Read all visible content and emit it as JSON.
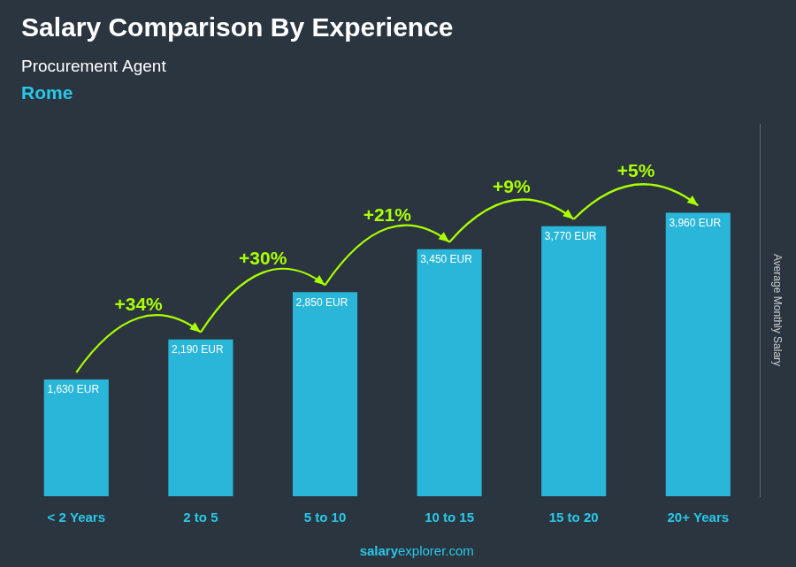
{
  "chart_data": {
    "type": "bar",
    "title": "Salary Comparison By Experience",
    "subtitle": "Procurement Agent",
    "annotations": [
      "Rome"
    ],
    "footer": [
      "salary",
      "explorer.com"
    ],
    "y_label": "Average Monthly Salary",
    "categories": [
      "< 2 Years",
      "2 to 5",
      "5 to 10",
      "10 to 15",
      "15 to 20",
      "20+ Years"
    ],
    "values": [
      1630,
      2190,
      2850,
      3450,
      3770,
      3960
    ],
    "value_labels": [
      "1,630 EUR",
      "2,190 EUR",
      "2,850 EUR",
      "3,450 EUR",
      "3,770 EUR",
      "3,960 EUR"
    ],
    "data_labels": true,
    "changes": [
      {
        "value": 34,
        "label": "+34%"
      },
      {
        "value": 30,
        "label": "+30%"
      },
      {
        "value": 21,
        "label": "+21%"
      },
      {
        "value": 9,
        "label": "+9%"
      },
      {
        "value": 5,
        "label": "+5%"
      }
    ],
    "color": "#29b6d8",
    "ylim": [
      0,
      5200
    ],
    "tick_labels": "x",
    "grid": false
  }
}
